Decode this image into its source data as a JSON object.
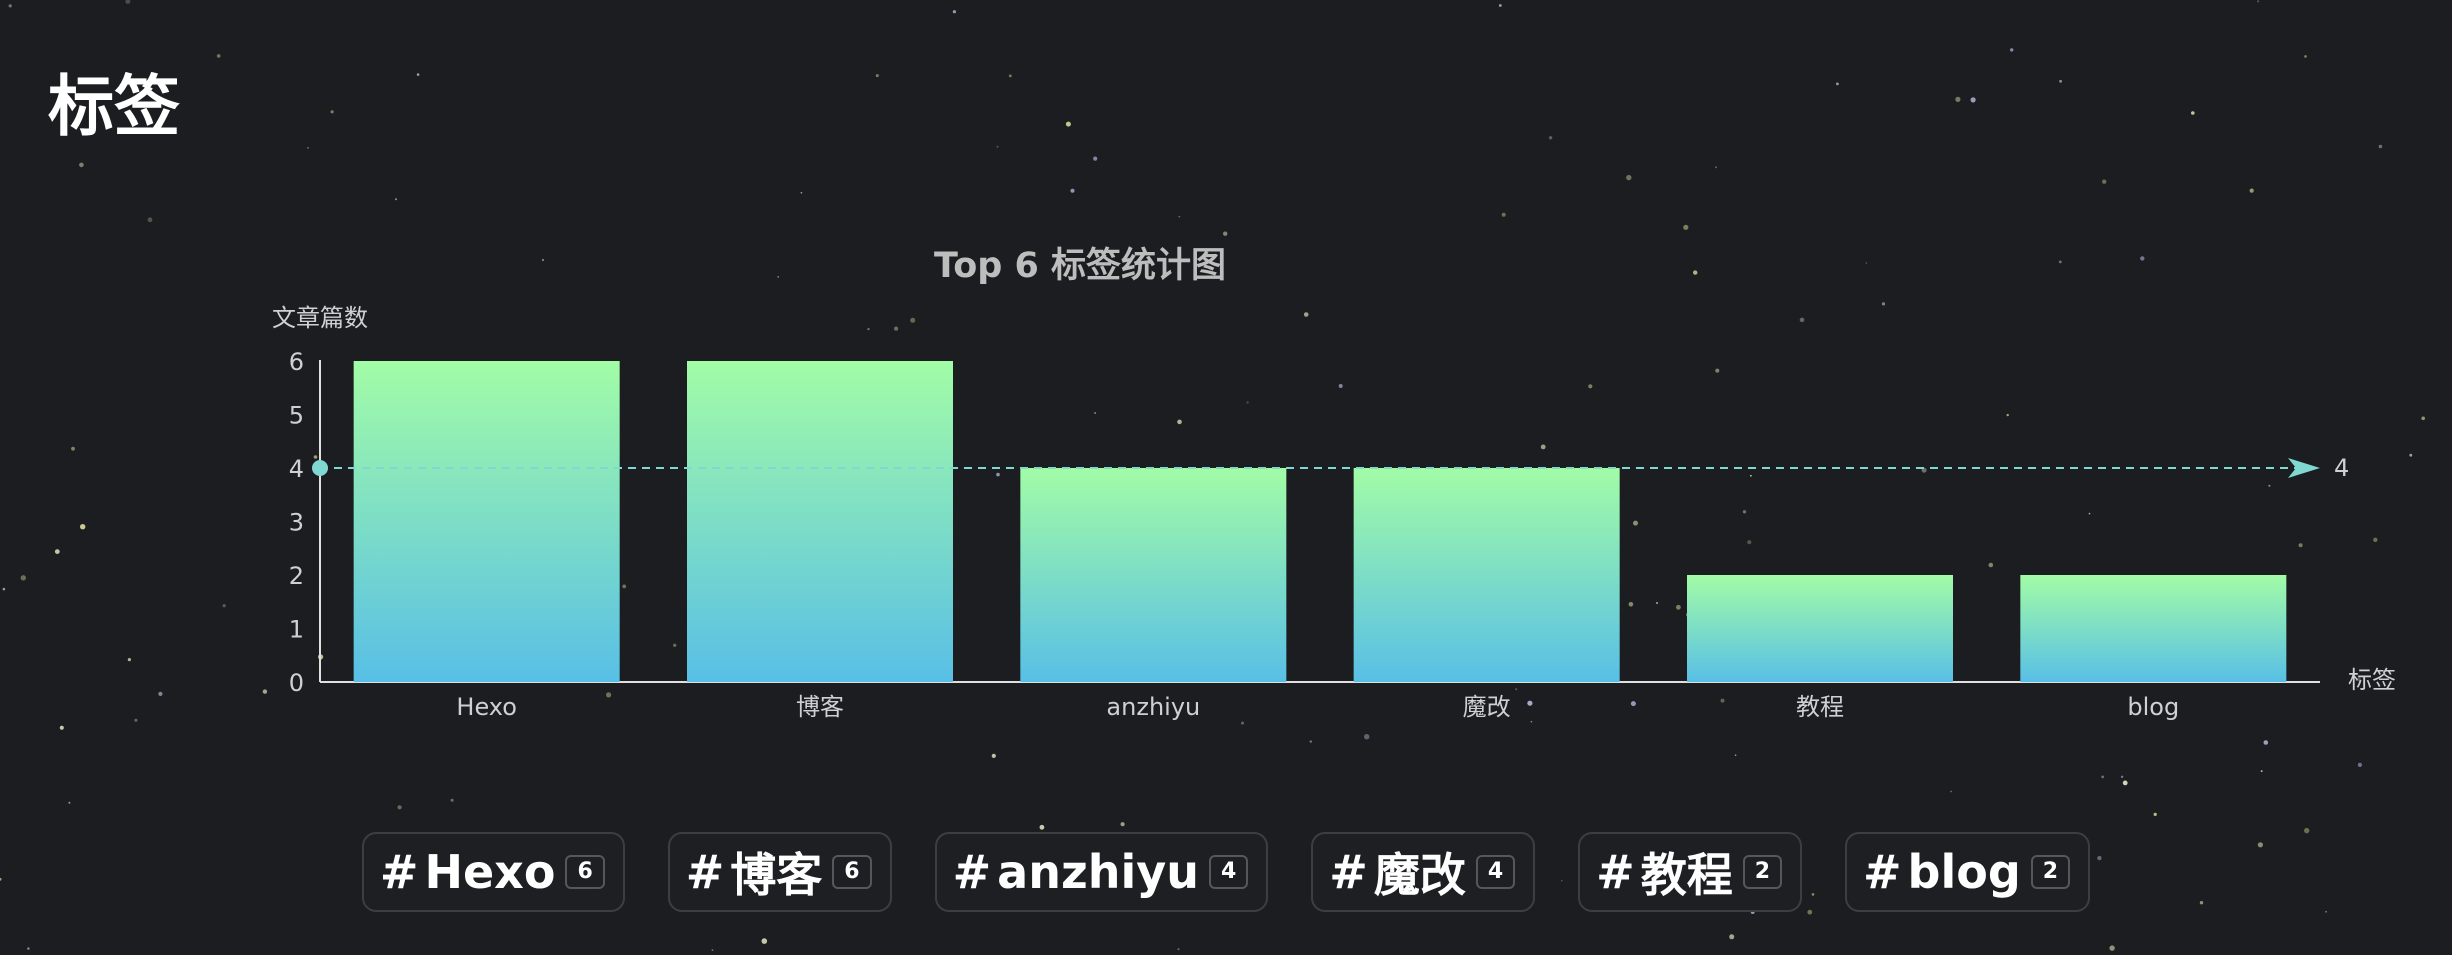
{
  "page": {
    "title": "标签"
  },
  "chart_data": {
    "type": "bar",
    "title": "Top 6 标签统计图",
    "xlabel": "标签",
    "ylabel": "文章篇数",
    "categories": [
      "Hexo",
      "博客",
      "anzhiyu",
      "魔改",
      "教程",
      "blog"
    ],
    "values": [
      6,
      6,
      4,
      4,
      2,
      2
    ],
    "ylim": [
      0,
      6
    ],
    "yticks": [
      0,
      1,
      2,
      3,
      4,
      5,
      6
    ],
    "mark_line": {
      "value": 4,
      "label": "4",
      "style": "dashed"
    },
    "gradient": {
      "top": "#a2fca6",
      "bottom": "#58bfe6"
    },
    "colors": {
      "axis": "#e0e0e0",
      "text": "#cfd0d2",
      "title": "#bdbdbd",
      "mark_line": "#7fd8d2"
    },
    "grid": false
  },
  "tags": [
    {
      "name": "Hexo",
      "count": "6"
    },
    {
      "name": "博客",
      "count": "6"
    },
    {
      "name": "anzhiyu",
      "count": "4"
    },
    {
      "name": "魔改",
      "count": "4"
    },
    {
      "name": "教程",
      "count": "2"
    },
    {
      "name": "blog",
      "count": "2"
    }
  ],
  "tag_prefix": "#"
}
